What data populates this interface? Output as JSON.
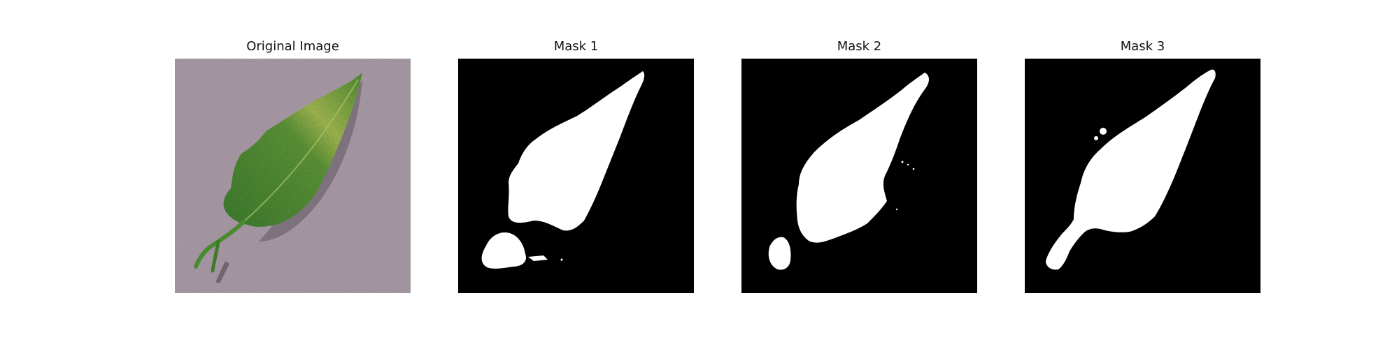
{
  "figure": {
    "panels": [
      {
        "title": "Original Image",
        "content": "leaf-photo"
      },
      {
        "title": "Mask 1",
        "content": "segmentation-mask"
      },
      {
        "title": "Mask 2",
        "content": "segmentation-mask"
      },
      {
        "title": "Mask 3",
        "content": "segmentation-mask"
      }
    ],
    "colors": {
      "background": "#ffffff",
      "mask_background": "#000000",
      "mask_foreground": "#ffffff",
      "surface": "#a89aa6",
      "leaf_dark": "#3f7a2c",
      "leaf_light": "#8fb04a"
    }
  }
}
